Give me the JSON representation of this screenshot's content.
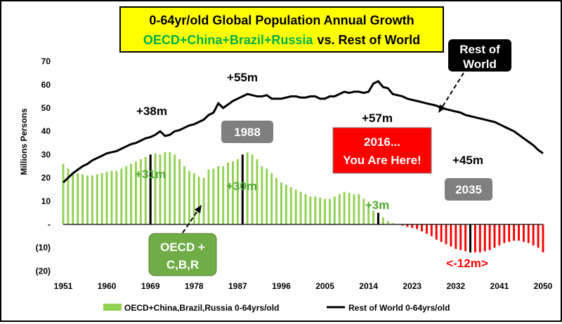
{
  "chart_data": {
    "type": "bar",
    "title_line1": "0-64yr/old  Global Population Annual Growth",
    "title_line2_green": "OECD+China+Brazil+Russia",
    "title_line2_black": "vs. Rest of World",
    "ylabel": "Millions Persons",
    "ylim": [
      -20,
      70
    ],
    "y_tick_labels": [
      "(20)",
      "(10)",
      "-",
      "10",
      "20",
      "30",
      "40",
      "50",
      "60",
      "70"
    ],
    "x_tick_labels": [
      "1951",
      "1960",
      "1969",
      "1978",
      "1987",
      "1996",
      "2005",
      "2014",
      "2023",
      "2032",
      "2041",
      "2050"
    ],
    "xlim": [
      1951,
      2050
    ],
    "bar_series": {
      "name": "OECD+China,Brazil,Russia 0-64yrs/old",
      "years_start": 1951,
      "values": [
        26,
        24,
        22,
        22,
        21.5,
        21,
        21,
        21.5,
        22,
        22.5,
        23,
        23,
        24,
        25,
        26,
        27,
        28,
        29,
        30,
        30.5,
        30,
        31,
        31,
        30,
        28,
        25,
        23,
        22,
        20.5,
        20,
        23.5,
        24,
        25,
        25,
        26.5,
        27,
        28,
        30,
        31,
        30,
        28,
        25,
        24,
        22,
        20,
        18,
        17,
        16,
        15,
        14,
        13,
        12,
        12,
        11.5,
        11,
        11,
        12,
        13,
        14,
        13.5,
        13,
        13,
        11,
        8,
        6,
        5,
        3,
        1.5,
        0.5,
        0,
        -0.5,
        -1,
        -1.5,
        -2,
        -3,
        -4,
        -5,
        -6.5,
        -7.5,
        -8.5,
        -9.5,
        -10.5,
        -11,
        -11.5,
        -12,
        -12,
        -12,
        -11.5,
        -11,
        -10,
        -9,
        -8,
        -7.5,
        -7,
        -7,
        -7.5,
        -8,
        -9,
        -10,
        -12
      ]
    },
    "line_series": {
      "name": "Rest of World 0-64yrs/old",
      "years_start": 1951,
      "values": [
        18,
        20,
        22,
        23.5,
        25,
        26,
        27.5,
        28.5,
        29.5,
        30.5,
        31,
        31.5,
        32.5,
        33.5,
        34.5,
        35,
        36,
        37,
        37.5,
        38.5,
        40,
        38,
        38.5,
        40,
        40.5,
        41.5,
        42.5,
        43,
        44,
        45,
        47,
        48,
        52,
        50,
        51.5,
        53,
        54,
        55,
        56,
        55.5,
        55,
        55,
        55.5,
        54,
        54,
        54,
        54.5,
        55,
        55,
        54.5,
        54.5,
        55,
        55,
        54,
        54,
        55,
        55,
        56,
        57,
        56.5,
        57,
        57,
        56.5,
        57,
        60.5,
        61.5,
        59,
        58.5,
        56,
        55.5,
        55,
        54,
        53.5,
        53,
        52.5,
        52,
        51.5,
        51,
        50,
        49.5,
        49,
        48.5,
        48,
        47,
        46.5,
        46,
        45.5,
        45,
        44.5,
        44,
        43,
        42,
        41,
        40,
        38.5,
        37,
        35.5,
        34,
        32,
        30.5
      ]
    },
    "legend_position": "bottom",
    "grid": false,
    "annotations": {
      "rest_of_world_box": [
        "Rest of",
        "World"
      ],
      "plus38": "+38m",
      "plus55": "+55m",
      "plus57": "+57m",
      "plus45": "+45m",
      "plus31": "+31m",
      "plus30": "+30m",
      "plus3": "+3m",
      "minus12": "<-12m>",
      "year1988": "1988",
      "year2035": "2035",
      "here_box": [
        "2016...",
        "You Are Here!"
      ],
      "oecd_box": [
        "OECD +",
        "C,B,R"
      ]
    },
    "colors": {
      "bars_pos": "#92d050",
      "bars_neg": "#ff0000",
      "line": "#000000",
      "title_bg": "#ffff00",
      "title_green": "#00b050",
      "red_box": "#ff0000",
      "gray_box": "#7f7f7f",
      "green_box": "#70ad47",
      "green_text": "#4ea72e",
      "red_text": "#ff0000"
    }
  }
}
